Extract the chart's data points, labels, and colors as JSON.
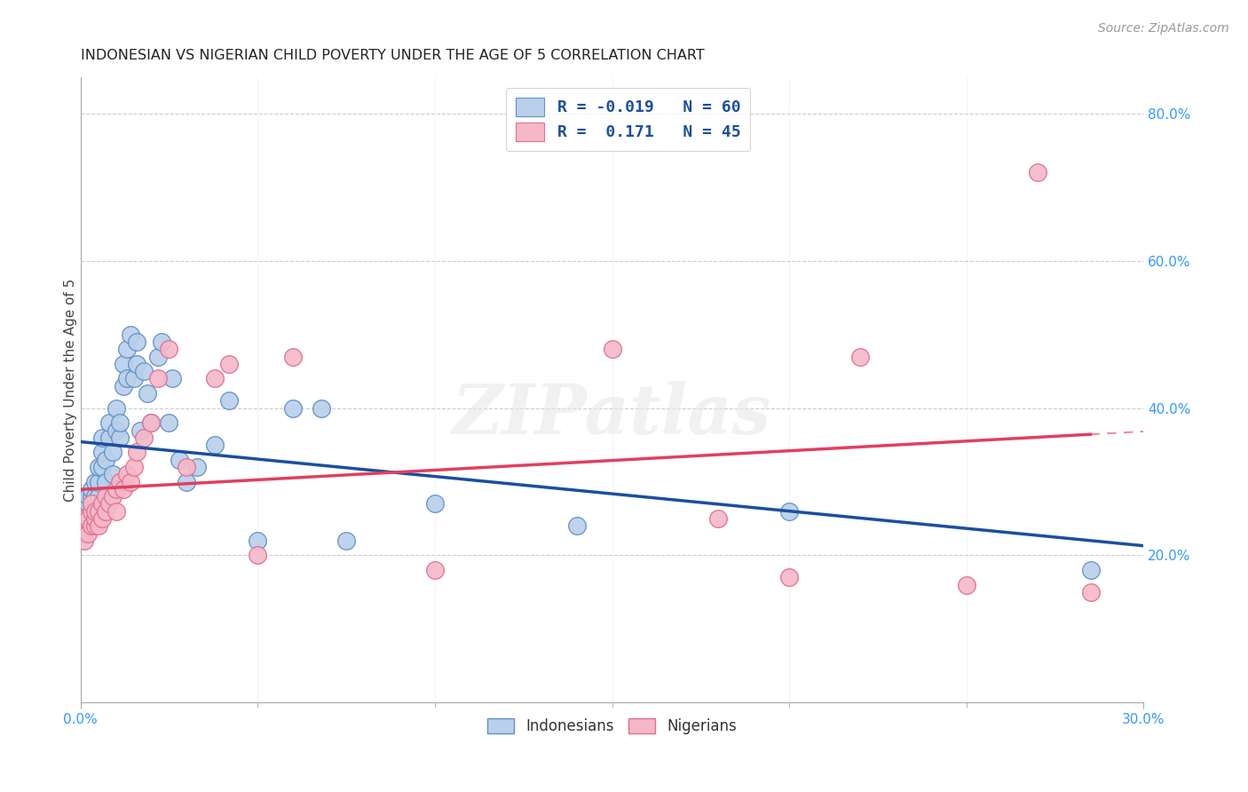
{
  "title": "INDONESIAN VS NIGERIAN CHILD POVERTY UNDER THE AGE OF 5 CORRELATION CHART",
  "source": "Source: ZipAtlas.com",
  "ylabel": "Child Poverty Under the Age of 5",
  "legend_label1": "Indonesians",
  "legend_label2": "Nigerians",
  "r_indonesian": -0.019,
  "n_indonesian": 60,
  "r_nigerian": 0.171,
  "n_nigerian": 45,
  "indonesian_color": "#b8d0ea",
  "nigerian_color": "#f5b8c8",
  "indonesian_edge": "#6090c8",
  "nigerian_edge": "#e07090",
  "line_indonesian_color": "#1a4fa0",
  "line_nigerian_color": "#e04060",
  "watermark": "ZIPatlas",
  "xlim": [
    0,
    0.3
  ],
  "ylim": [
    0,
    0.85
  ],
  "indonesian_x": [
    0.0005,
    0.001,
    0.001,
    0.001,
    0.002,
    0.002,
    0.002,
    0.002,
    0.003,
    0.003,
    0.003,
    0.003,
    0.004,
    0.004,
    0.004,
    0.005,
    0.005,
    0.005,
    0.006,
    0.006,
    0.006,
    0.007,
    0.007,
    0.008,
    0.008,
    0.009,
    0.009,
    0.01,
    0.01,
    0.011,
    0.011,
    0.012,
    0.012,
    0.013,
    0.013,
    0.014,
    0.015,
    0.016,
    0.016,
    0.017,
    0.018,
    0.019,
    0.02,
    0.022,
    0.023,
    0.025,
    0.026,
    0.028,
    0.03,
    0.033,
    0.038,
    0.042,
    0.05,
    0.06,
    0.068,
    0.075,
    0.1,
    0.14,
    0.2,
    0.285
  ],
  "indonesian_y": [
    0.26,
    0.25,
    0.26,
    0.28,
    0.25,
    0.26,
    0.27,
    0.28,
    0.26,
    0.27,
    0.28,
    0.29,
    0.27,
    0.28,
    0.3,
    0.28,
    0.3,
    0.32,
    0.32,
    0.34,
    0.36,
    0.3,
    0.33,
    0.36,
    0.38,
    0.31,
    0.34,
    0.37,
    0.4,
    0.36,
    0.38,
    0.43,
    0.46,
    0.44,
    0.48,
    0.5,
    0.44,
    0.46,
    0.49,
    0.37,
    0.45,
    0.42,
    0.38,
    0.47,
    0.49,
    0.38,
    0.44,
    0.33,
    0.3,
    0.32,
    0.35,
    0.41,
    0.22,
    0.4,
    0.4,
    0.22,
    0.27,
    0.24,
    0.26,
    0.18
  ],
  "nigerian_x": [
    0.0005,
    0.001,
    0.001,
    0.001,
    0.002,
    0.002,
    0.003,
    0.003,
    0.003,
    0.004,
    0.004,
    0.004,
    0.005,
    0.005,
    0.006,
    0.006,
    0.007,
    0.007,
    0.008,
    0.009,
    0.01,
    0.01,
    0.011,
    0.012,
    0.013,
    0.014,
    0.015,
    0.016,
    0.018,
    0.02,
    0.022,
    0.025,
    0.03,
    0.038,
    0.042,
    0.05,
    0.06,
    0.1,
    0.15,
    0.18,
    0.2,
    0.22,
    0.25,
    0.27,
    0.285
  ],
  "nigerian_y": [
    0.23,
    0.22,
    0.24,
    0.25,
    0.23,
    0.25,
    0.24,
    0.26,
    0.27,
    0.24,
    0.25,
    0.26,
    0.24,
    0.26,
    0.25,
    0.27,
    0.26,
    0.28,
    0.27,
    0.28,
    0.26,
    0.29,
    0.3,
    0.29,
    0.31,
    0.3,
    0.32,
    0.34,
    0.36,
    0.38,
    0.44,
    0.48,
    0.32,
    0.44,
    0.46,
    0.2,
    0.47,
    0.18,
    0.48,
    0.25,
    0.17,
    0.47,
    0.16,
    0.72,
    0.15
  ]
}
